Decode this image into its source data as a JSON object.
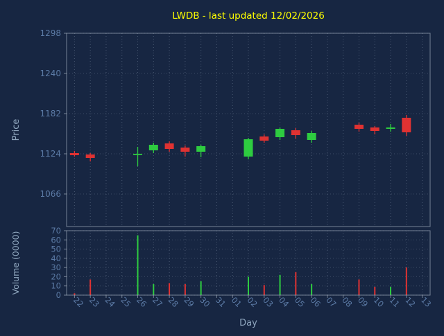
{
  "window": {
    "background": "#172642"
  },
  "chart_data": {
    "type": "candlestick",
    "title": "LWDB - last updated 12/02/2026",
    "xlabel": "Day",
    "ylabel": "Price",
    "ylabel2": "Volume (0000)",
    "legend": "none",
    "grid": "dotted",
    "colors": {
      "background": "#172642",
      "up": "#2ECC40",
      "down": "#E03232",
      "title": "#FFFF00",
      "tick_label": "#5C7BA6",
      "axis_label": "#8FA6BE",
      "spine": "#A9B4C2",
      "grid": "#93A3B8"
    },
    "price_axis": {
      "ticks": [
        1298,
        1240,
        1182,
        1124,
        1066
      ],
      "min": 1019,
      "max": 1298
    },
    "volume_axis": {
      "ticks": [
        70,
        60,
        50,
        40,
        30,
        20,
        10,
        0
      ],
      "min": 0,
      "max": 70
    },
    "categories": [
      "22",
      "23",
      "24",
      "25",
      "26",
      "27",
      "28",
      "29",
      "30",
      "31",
      "01",
      "02",
      "03",
      "04",
      "05",
      "06",
      "07",
      "08",
      "09",
      "10",
      "11",
      "12",
      "13"
    ],
    "candles": [
      {
        "day": "22",
        "open": 1125,
        "high": 1128,
        "low": 1120,
        "close": 1122,
        "volume": 2
      },
      {
        "day": "23",
        "open": 1123,
        "high": 1125,
        "low": 1113,
        "close": 1118,
        "volume": 17
      },
      {
        "day": "26",
        "open": 1123,
        "high": 1134,
        "low": 1106,
        "close": 1124,
        "volume": 65
      },
      {
        "day": "27",
        "open": 1129,
        "high": 1140,
        "low": 1125,
        "close": 1137,
        "volume": 12
      },
      {
        "day": "28",
        "open": 1139,
        "high": 1142,
        "low": 1127,
        "close": 1131,
        "volume": 13
      },
      {
        "day": "29",
        "open": 1133,
        "high": 1136,
        "low": 1120,
        "close": 1127,
        "volume": 12
      },
      {
        "day": "30",
        "open": 1127,
        "high": 1137,
        "low": 1119,
        "close": 1135,
        "volume": 15
      },
      {
        "day": "02",
        "open": 1120,
        "high": 1147,
        "low": 1116,
        "close": 1145,
        "volume": 20
      },
      {
        "day": "03",
        "open": 1149,
        "high": 1152,
        "low": 1140,
        "close": 1143,
        "volume": 11
      },
      {
        "day": "04",
        "open": 1148,
        "high": 1162,
        "low": 1144,
        "close": 1160,
        "volume": 22
      },
      {
        "day": "05",
        "open": 1158,
        "high": 1161,
        "low": 1146,
        "close": 1151,
        "volume": 25
      },
      {
        "day": "06",
        "open": 1144,
        "high": 1157,
        "low": 1140,
        "close": 1154,
        "volume": 12
      },
      {
        "day": "09",
        "open": 1166,
        "high": 1169,
        "low": 1156,
        "close": 1160,
        "volume": 17
      },
      {
        "day": "10",
        "open": 1162,
        "high": 1164,
        "low": 1152,
        "close": 1157,
        "volume": 9
      },
      {
        "day": "11",
        "open": 1160,
        "high": 1167,
        "low": 1156,
        "close": 1162,
        "volume": 9
      },
      {
        "day": "12",
        "open": 1176,
        "high": 1180,
        "low": 1150,
        "close": 1155,
        "volume": 30
      }
    ]
  }
}
